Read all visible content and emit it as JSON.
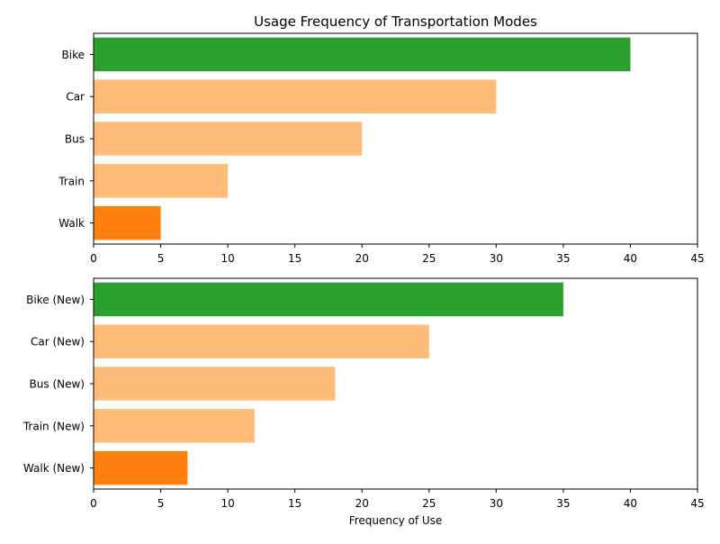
{
  "chart_data": [
    {
      "type": "bar",
      "orientation": "horizontal",
      "title": "Usage Frequency of Transportation Modes",
      "xlabel": "",
      "ylabel": "",
      "categories": [
        "Bike",
        "Car",
        "Bus",
        "Train",
        "Walk"
      ],
      "values": [
        40,
        30,
        20,
        10,
        5
      ],
      "colors": [
        "#2ca02c",
        "#ffbb78",
        "#ffbb78",
        "#ffbb78",
        "#ff7f0e"
      ],
      "xlim": [
        0,
        45
      ],
      "xticks": [
        "0",
        "5",
        "10",
        "15",
        "20",
        "25",
        "30",
        "35",
        "40",
        "45"
      ],
      "grid": false
    },
    {
      "type": "bar",
      "orientation": "horizontal",
      "title": "",
      "xlabel": "Frequency of Use",
      "ylabel": "",
      "categories": [
        "Bike (New)",
        "Car (New)",
        "Bus (New)",
        "Train (New)",
        "Walk (New)"
      ],
      "values": [
        35,
        25,
        18,
        12,
        7
      ],
      "colors": [
        "#2ca02c",
        "#ffbb78",
        "#ffbb78",
        "#ffbb78",
        "#ff7f0e"
      ],
      "xlim": [
        0,
        45
      ],
      "xticks": [
        "0",
        "5",
        "10",
        "15",
        "20",
        "25",
        "30",
        "35",
        "40",
        "45"
      ],
      "grid": false
    }
  ]
}
